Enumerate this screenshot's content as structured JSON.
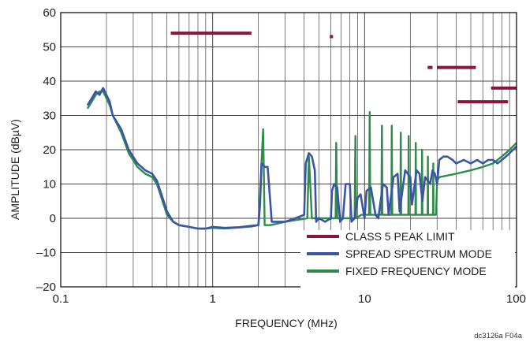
{
  "figure_id": "dc3126a F04a",
  "colors": {
    "limit": "#8b1538",
    "spread": "#3a55a8",
    "fixed": "#2e8b4a",
    "grid": "#444444",
    "axis": "#000000"
  },
  "chart_data": {
    "type": "line",
    "xlabel": "FREQUENCY (MHz)",
    "ylabel": "AMPLITUDE (dBµV)",
    "xscale": "log",
    "xlim": [
      0.1,
      100
    ],
    "ylim": [
      -20,
      60
    ],
    "x_ticks": [
      {
        "value": 0.1,
        "label": "0.1"
      },
      {
        "value": 1,
        "label": "1"
      },
      {
        "value": 10,
        "label": "10"
      },
      {
        "value": 100,
        "label": "100"
      }
    ],
    "y_ticks": [
      {
        "value": 60,
        "label": "60"
      },
      {
        "value": 50,
        "label": "50"
      },
      {
        "value": 40,
        "label": "40"
      },
      {
        "value": 30,
        "label": "30"
      },
      {
        "value": 20,
        "label": "20"
      },
      {
        "value": 10,
        "label": "10"
      },
      {
        "value": 0,
        "label": "0"
      },
      {
        "value": -10,
        "label": "–10"
      },
      {
        "value": -20,
        "label": "–20"
      }
    ],
    "grid": true,
    "legend_position": "bottom-right",
    "legend": [
      {
        "label": "CLASS 5 PEAK LIMIT",
        "series": "limit"
      },
      {
        "label": "SPREAD SPECTRUM MODE",
        "series": "spread"
      },
      {
        "label": "FIXED FREQUENCY MODE",
        "series": "fixed"
      }
    ],
    "limit_segments": [
      {
        "x": [
          0.53,
          1.8
        ],
        "y": 54
      },
      {
        "x": [
          5.9,
          6.2
        ],
        "y": 53
      },
      {
        "x": [
          26,
          28
        ],
        "y": 44
      },
      {
        "x": [
          30,
          54
        ],
        "y": 44
      },
      {
        "x": [
          41,
          88
        ],
        "y": 34
      },
      {
        "x": [
          68,
          100
        ],
        "y": 38
      }
    ],
    "spread_spectrum": {
      "x": [
        0.15,
        0.16,
        0.17,
        0.18,
        0.19,
        0.2,
        0.21,
        0.22,
        0.25,
        0.28,
        0.32,
        0.36,
        0.4,
        0.43,
        0.46,
        0.5,
        0.55,
        0.6,
        0.7,
        0.8,
        0.9,
        1.0,
        1.2,
        1.5,
        1.8,
        2.0,
        2.05,
        2.1,
        2.2,
        2.3,
        2.45,
        2.6,
        3.0,
        3.5,
        4.0,
        4.1,
        4.3,
        4.5,
        4.7,
        4.8,
        5.0,
        5.5,
        6.0,
        6.1,
        6.3,
        6.6,
        6.9,
        7.2,
        7.5,
        8.0,
        8.2,
        8.6,
        9.0,
        9.4,
        10.0,
        10.3,
        11.0,
        11.8,
        12.3,
        13.2,
        14.0,
        14.4,
        15.5,
        16.5,
        17.0,
        18.5,
        20.0,
        20.5,
        22.0,
        23.0,
        24.0,
        25.0,
        26.0,
        27.0,
        28.0,
        29.0,
        30.0,
        31.0,
        33.0,
        35.0,
        38.0,
        40.0,
        45.0,
        50.0,
        55.0,
        60.0,
        65.0,
        70.0,
        75.0,
        80.0,
        85.0,
        90.0,
        95.0,
        100.0
      ],
      "y": [
        33,
        35,
        37,
        36,
        38,
        36,
        34,
        30,
        26,
        20,
        16,
        14,
        13,
        11,
        7,
        2,
        -1,
        -2,
        -2.5,
        -3,
        -3,
        -2.5,
        -2.8,
        -2.6,
        -2.2,
        -2,
        4,
        16,
        15,
        15,
        -1,
        -1,
        -1,
        0,
        1,
        16,
        19,
        18,
        14,
        -1,
        0,
        -1,
        0,
        8,
        10,
        9,
        -1,
        0,
        10,
        10,
        -1,
        0,
        6,
        7,
        0,
        8,
        9,
        1,
        0,
        10,
        9,
        1,
        12,
        13,
        2,
        14,
        12,
        4,
        14,
        13,
        5,
        12,
        11,
        10,
        14,
        13,
        10,
        17,
        18,
        18,
        17,
        16,
        17,
        16,
        17,
        16,
        17,
        17,
        16,
        17,
        18,
        19,
        20,
        21
      ]
    },
    "fixed_frequency": {
      "x": [
        0.15,
        0.16,
        0.17,
        0.18,
        0.19,
        0.2,
        0.21,
        0.22,
        0.25,
        0.28,
        0.32,
        0.36,
        0.4,
        0.43,
        0.46,
        0.5,
        0.55,
        0.6,
        0.7,
        0.8,
        0.9,
        1.0,
        1.2,
        1.5,
        1.8,
        2.0,
        2.15,
        2.2,
        2.4,
        3.0,
        4.2,
        4.3,
        4.5,
        4.7,
        5.0,
        5.5,
        6.0,
        6.45,
        6.5,
        6.6,
        7.0,
        8.0,
        8.6,
        8.7,
        8.8,
        9.5,
        10.0,
        10.7,
        10.8,
        10.9,
        12.0,
        12.9,
        13.0,
        13.1,
        14.5,
        15.0,
        15.1,
        15.2,
        16.5,
        17.2,
        17.3,
        17.4,
        18.5,
        19.4,
        19.5,
        19.6,
        21.0,
        21.6,
        21.7,
        21.8,
        23.0,
        23.8,
        23.9,
        24.0,
        25.5,
        26.0,
        26.1,
        26.2,
        27.5,
        28.2,
        28.3,
        28.4,
        29.5,
        30.0,
        31.0,
        40.0,
        50.0,
        60.0,
        70.0,
        80.0,
        90.0,
        100.0
      ],
      "y": [
        32,
        34,
        36,
        37,
        37,
        35,
        33,
        30,
        25,
        19,
        15,
        13,
        12,
        10,
        6,
        1,
        -1,
        -2,
        -2.5,
        -3,
        -3,
        -2.8,
        -3,
        -2.7,
        -2.4,
        -2,
        26,
        -2,
        -2,
        -1,
        0,
        18,
        0,
        0,
        0,
        0,
        0,
        0,
        22,
        0,
        0,
        0,
        0,
        24,
        0,
        1,
        1,
        1,
        31,
        1,
        1,
        1,
        27,
        1,
        1,
        1,
        27,
        1,
        1,
        1,
        25,
        1,
        1,
        1,
        24,
        1,
        1,
        1,
        22,
        1,
        1,
        1,
        20,
        1,
        1,
        1,
        18,
        1,
        1,
        1,
        16,
        1,
        1,
        11,
        12,
        13,
        14,
        15,
        16,
        18,
        20,
        22
      ]
    }
  }
}
